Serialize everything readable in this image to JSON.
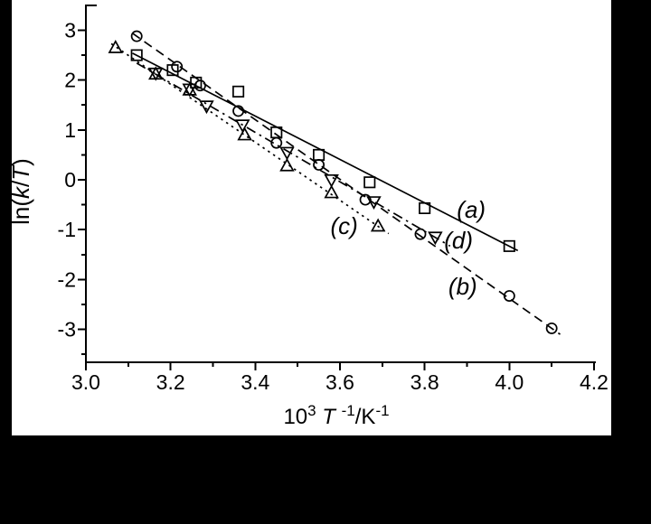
{
  "figure": {
    "background_color": "#000000",
    "panel_color": "#ffffff",
    "ink_color": "#000000"
  },
  "chart_data": {
    "type": "scatter",
    "title": "",
    "xlabel_parts": [
      {
        "text": "10"
      },
      {
        "text": "3",
        "sup": true
      },
      {
        "text": " "
      },
      {
        "text": "T",
        "italic": true
      },
      {
        "text": " "
      },
      {
        "text": "-1",
        "sup": true
      },
      {
        "text": "/K"
      },
      {
        "text": "-1",
        "sup": true
      }
    ],
    "ylabel_parts": [
      {
        "text": "ln("
      },
      {
        "text": "k",
        "italic": true
      },
      {
        "text": "/"
      },
      {
        "text": "T",
        "italic": true
      },
      {
        "text": ")"
      }
    ],
    "x_axis": {
      "min": 3.0,
      "max": 4.2,
      "major_ticks": [
        3.0,
        3.2,
        3.4,
        3.6,
        3.8,
        4.0,
        4.2
      ],
      "tick_labels": [
        "3.0",
        "3.2",
        "3.4",
        "3.6",
        "3.8",
        "4.0",
        "4.2"
      ],
      "minor_ticks": [
        3.1,
        3.3,
        3.5,
        3.7,
        3.9,
        4.1
      ]
    },
    "y_axis": {
      "min": -3.65,
      "max": 3.5,
      "major_ticks": [
        3,
        2,
        1,
        0,
        -1,
        -2,
        -3
      ],
      "tick_labels": [
        "3",
        "2",
        "1",
        "0",
        "-1",
        "-2",
        "-3"
      ],
      "minor_ticks": [
        2.5,
        1.5,
        0.5,
        -0.5,
        -1.5,
        -2.5,
        -3.5
      ]
    },
    "grid": false,
    "series": [
      {
        "name": "a",
        "label": "(a)",
        "label_at": [
          3.91,
          -0.6
        ],
        "marker": "square",
        "line_style": "solid",
        "points": [
          [
            3.12,
            2.5
          ],
          [
            3.205,
            2.2
          ],
          [
            3.26,
            1.95
          ],
          [
            3.36,
            1.77
          ],
          [
            3.45,
            0.95
          ],
          [
            3.55,
            0.5
          ],
          [
            3.67,
            -0.05
          ],
          [
            3.8,
            -0.57
          ],
          [
            4.0,
            -1.33
          ]
        ],
        "trend_line": [
          [
            3.11,
            2.54
          ],
          [
            4.02,
            -1.42
          ]
        ]
      },
      {
        "name": "b",
        "label": "(b)",
        "label_at": [
          3.89,
          -2.14
        ],
        "marker": "circle",
        "line_style": "dashed",
        "points": [
          [
            3.12,
            2.88
          ],
          [
            3.215,
            2.27
          ],
          [
            3.27,
            1.89
          ],
          [
            3.36,
            1.38
          ],
          [
            3.45,
            0.74
          ],
          [
            3.55,
            0.3
          ],
          [
            3.66,
            -0.4
          ],
          [
            3.79,
            -1.09
          ],
          [
            4.0,
            -2.33
          ],
          [
            4.1,
            -2.98
          ]
        ],
        "trend_line": [
          [
            3.11,
            2.94
          ],
          [
            4.12,
            -3.1
          ]
        ]
      },
      {
        "name": "c",
        "label": "(c)",
        "label_at": [
          3.61,
          -0.92
        ],
        "marker": "triangle-up",
        "line_style": "dotted",
        "points": [
          [
            3.07,
            2.65
          ],
          [
            3.165,
            2.12
          ],
          [
            3.245,
            1.8
          ],
          [
            3.375,
            0.9
          ],
          [
            3.475,
            0.28
          ],
          [
            3.58,
            -0.26
          ],
          [
            3.69,
            -0.93
          ]
        ],
        "trend_line": [
          [
            3.06,
            2.73
          ],
          [
            3.715,
            -1.08
          ]
        ]
      },
      {
        "name": "d",
        "label": "(d)",
        "label_at": [
          3.88,
          -1.21
        ],
        "marker": "triangle-down",
        "line_style": "dashdot",
        "points": [
          [
            3.165,
            2.14
          ],
          [
            3.245,
            1.82
          ],
          [
            3.285,
            1.48
          ],
          [
            3.37,
            1.1
          ],
          [
            3.475,
            0.55
          ],
          [
            3.58,
            0.0
          ],
          [
            3.68,
            -0.44
          ],
          [
            3.825,
            -1.15
          ]
        ],
        "trend_line": [
          [
            3.12,
            2.34
          ],
          [
            3.86,
            -1.33
          ]
        ]
      }
    ]
  }
}
